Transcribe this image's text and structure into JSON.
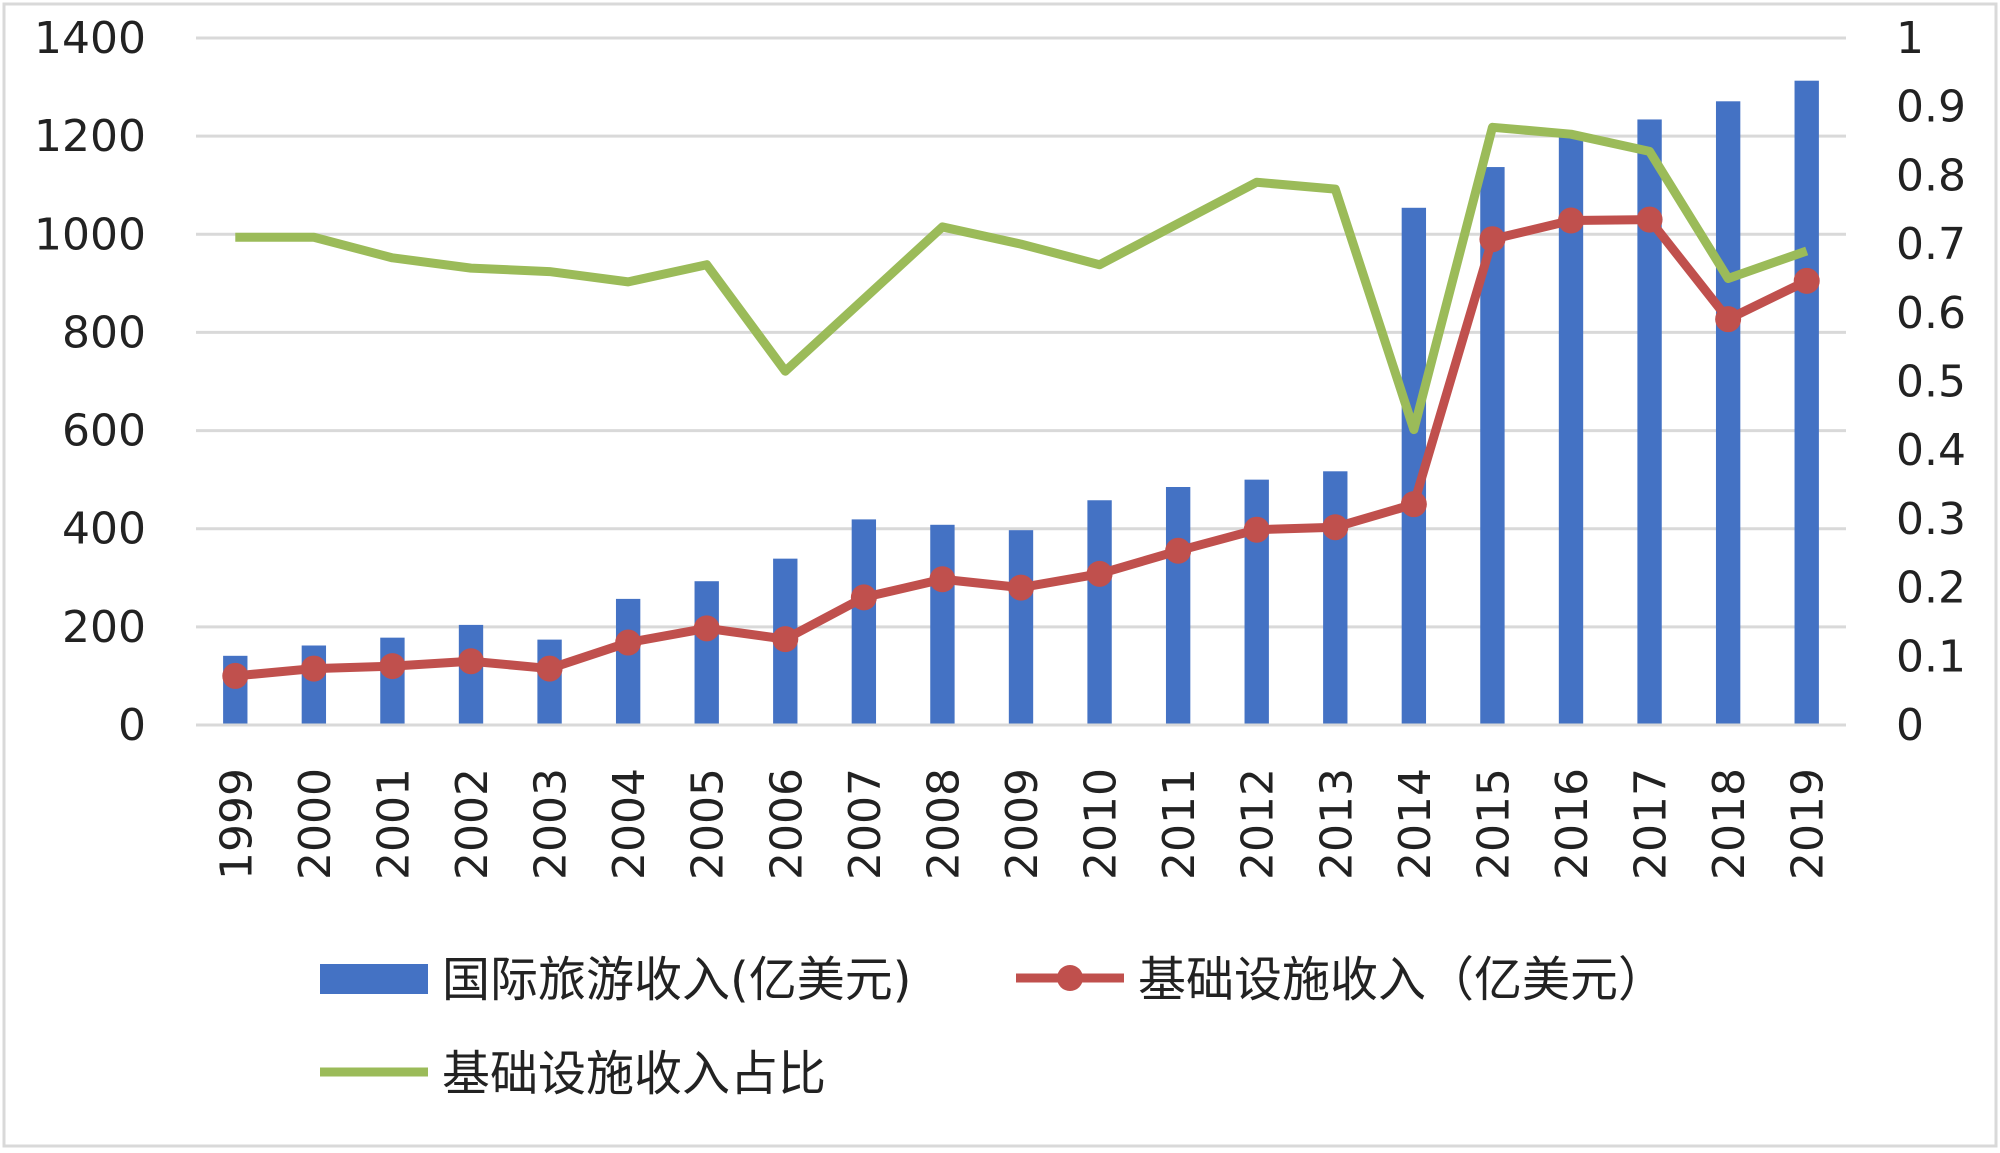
{
  "chart_data": {
    "type": "bar+line",
    "categories": [
      "1999",
      "2000",
      "2001",
      "2002",
      "2003",
      "2004",
      "2005",
      "2006",
      "2007",
      "2008",
      "2009",
      "2010",
      "2011",
      "2012",
      "2013",
      "2014",
      "2015",
      "2016",
      "2017",
      "2018",
      "2019"
    ],
    "series": [
      {
        "name": "国际旅游收入(亿美元)",
        "type": "bar",
        "axis": "left",
        "color": "#4472C4",
        "values": [
          141,
          162,
          178,
          204,
          174,
          257,
          293,
          339,
          419,
          408,
          397,
          458,
          485,
          500,
          517,
          1054,
          1137,
          1200,
          1234,
          1271,
          1313
        ]
      },
      {
        "name": "基础设施收入（亿美元）",
        "type": "line",
        "axis": "left",
        "color": "#C0504D",
        "marker": "circle",
        "values": [
          100,
          115,
          120,
          130,
          115,
          168,
          197,
          175,
          260,
          297,
          280,
          308,
          355,
          398,
          403,
          450,
          990,
          1028,
          1030,
          827,
          905
        ]
      },
      {
        "name": "基础设施收入占比",
        "type": "line",
        "axis": "right",
        "color": "#9BBB59",
        "values": [
          0.71,
          0.71,
          0.68,
          0.665,
          0.66,
          0.645,
          0.67,
          0.515,
          0.62,
          0.725,
          0.7,
          0.67,
          0.73,
          0.79,
          0.78,
          0.43,
          0.87,
          0.86,
          0.835,
          0.65,
          0.69
        ]
      }
    ],
    "y_left": {
      "min": 0,
      "max": 1400,
      "ticks": [
        "0",
        "200",
        "400",
        "600",
        "800",
        "1000",
        "1200",
        "1400"
      ]
    },
    "y_right": {
      "min": 0,
      "max": 1,
      "ticks": [
        "0",
        "0.1",
        "0.2",
        "0.3",
        "0.4",
        "0.5",
        "0.6",
        "0.7",
        "0.8",
        "0.9",
        "1"
      ]
    },
    "grid": true,
    "legend_position": "bottom",
    "title": "",
    "xlabel": "",
    "ylabel": ""
  }
}
